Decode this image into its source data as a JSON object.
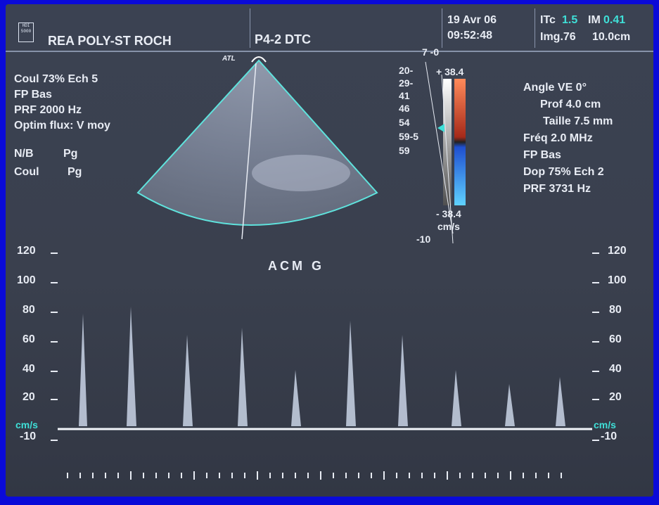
{
  "header": {
    "logo_text": "HDI 5000",
    "institution": "REA POLY-ST ROCH",
    "probe": "P4-2 DTC",
    "date": "19 Avr 06",
    "time": "09:52:48",
    "itc_label": "ITc",
    "itc_value": "1.5",
    "im_label": "IM",
    "im_value": "0.41",
    "img_label": "Img.76",
    "depth": "10.0cm"
  },
  "left_params": {
    "line1": "Coul 73%  Ech 5",
    "line2": "FP Bas",
    "line3": "PRF 2000  Hz",
    "line4": "Optim flux: V moy",
    "nb_label": "N/B",
    "nb_value": "Pg",
    "coul_label": "Coul",
    "coul_value": "Pg"
  },
  "sector": {
    "brand": "ATL"
  },
  "colorbar": {
    "top_value": "+ 38.4",
    "bottom_value": "- 38.4",
    "unit": "cm/s",
    "scale_top": "7 -0",
    "scale_bottom": "-10",
    "labels": [
      "20-",
      "29-",
      "41",
      "46",
      "54",
      "59-5",
      "59"
    ]
  },
  "right_params": {
    "angle": "Angle VE 0°",
    "prof": "Prof 4.0  cm",
    "taille": "Taille 7.5  mm",
    "freq": "Fréq 2.0  MHz",
    "fp": "FP Bas",
    "dop": "Dop 75%  Ech 2",
    "prf": "PRF 3731  Hz"
  },
  "doppler": {
    "label": "ACM  G",
    "unit": "cm/s",
    "axis_labels_left": [
      "120",
      "100",
      "80",
      "60",
      "40",
      "20",
      "-10"
    ],
    "axis_labels_right": [
      "120",
      "100",
      "80",
      "60",
      "40",
      "20",
      "-10"
    ]
  },
  "colors": {
    "screen_bg": "#3b4252",
    "text": "#e8ecf4",
    "accent_cyan": "#3fe0d8",
    "outline_blue": "#0a0ad8"
  }
}
